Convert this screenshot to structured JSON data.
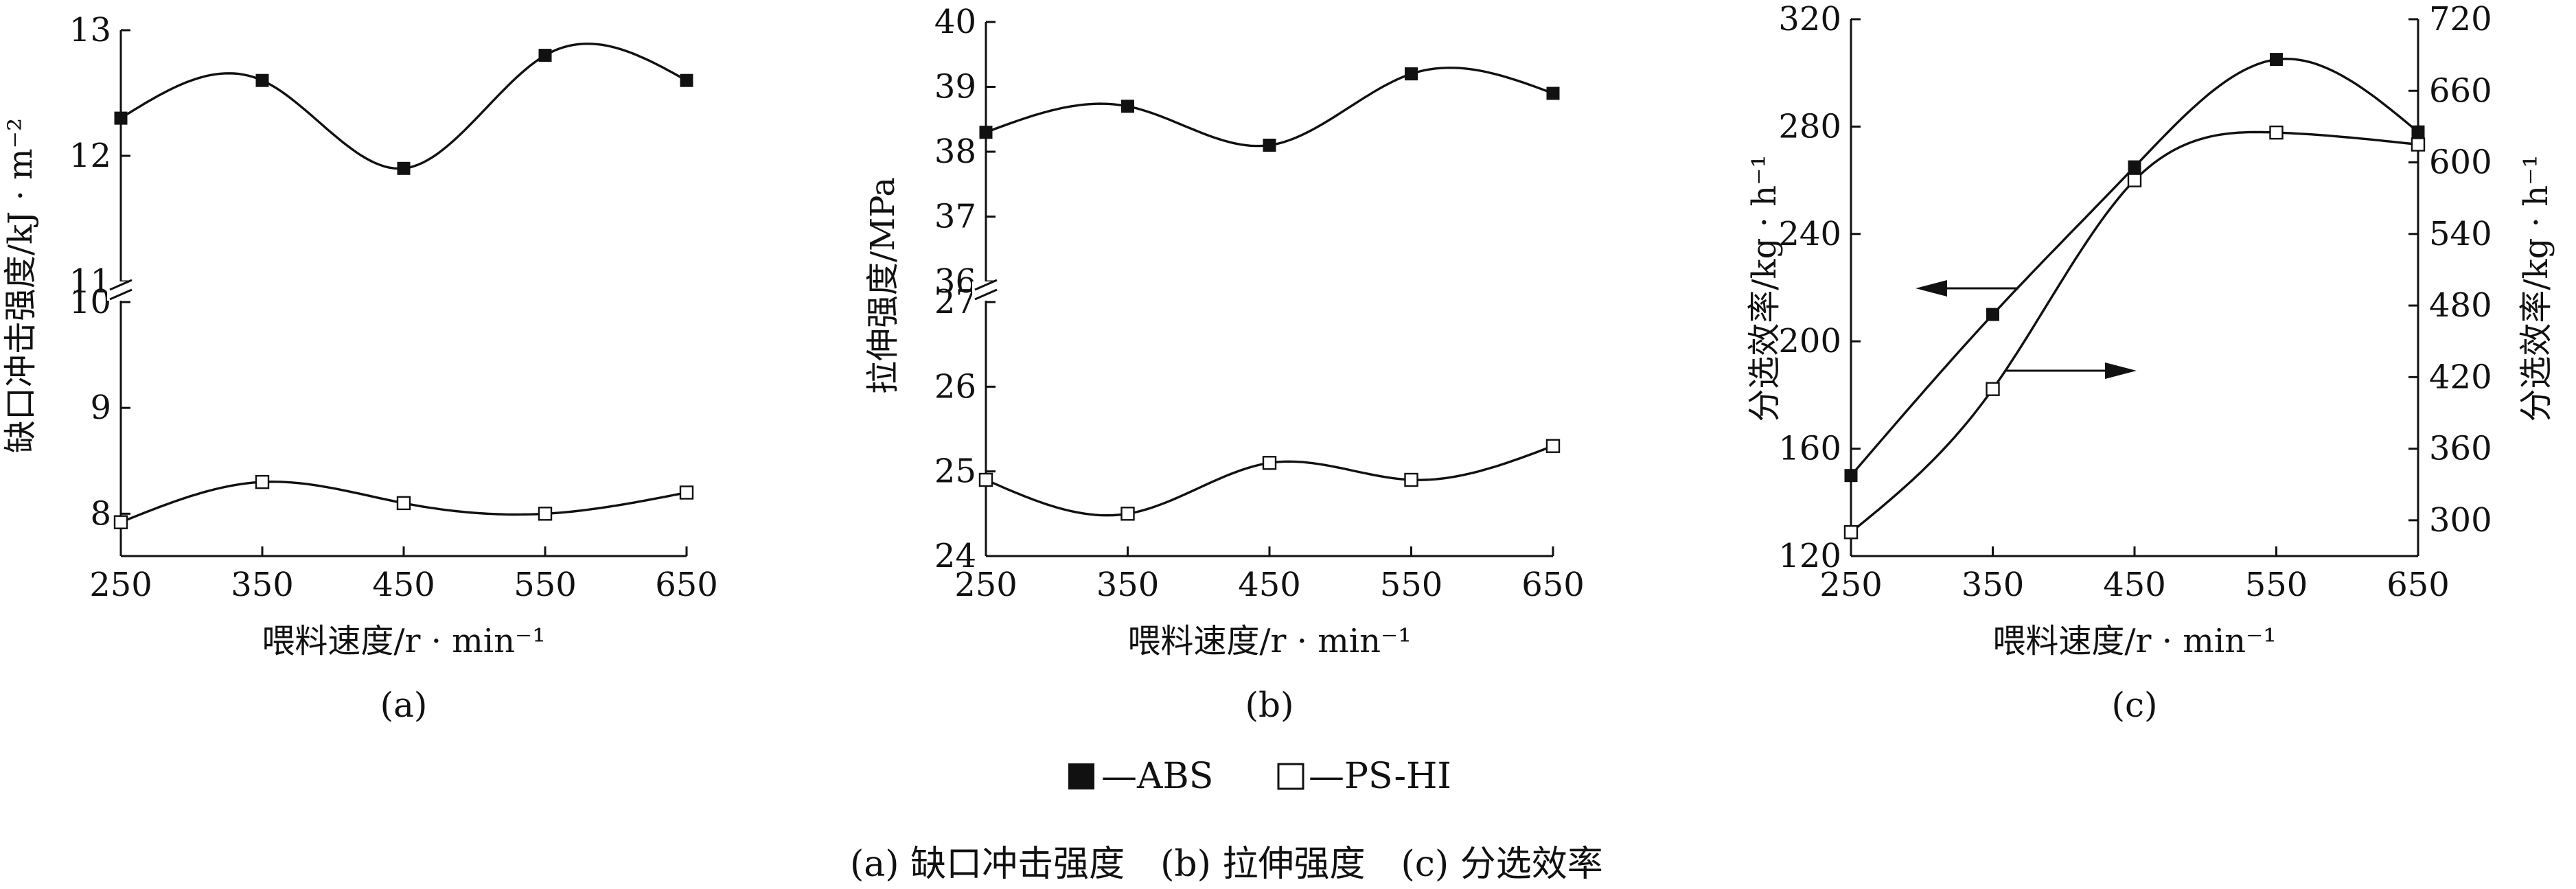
{
  "legend": [
    {
      "label": "—ABS",
      "marker": "filled-square"
    },
    {
      "label": "—PS-HI",
      "marker": "open-square"
    }
  ],
  "caption": "(a) 缺口冲击强度　(b) 拉伸强度　(c) 分选效率",
  "chart_data": [
    {
      "type": "scatter",
      "panel_label": "(a)",
      "xlabel": "喂料速度/r · min⁻¹",
      "ylabel": "缺口冲击强度/kJ · m⁻²",
      "x_ticks": [
        "250",
        "350",
        "450",
        "550",
        "650"
      ],
      "xlim": [
        250,
        650
      ],
      "broken_y_axis": true,
      "y_upper": {
        "range": [
          11,
          13
        ],
        "ticks": [
          "11",
          "12",
          "13"
        ]
      },
      "y_lower": {
        "range": [
          7.6,
          10
        ],
        "ticks": [
          "8",
          "9",
          "10"
        ]
      },
      "series": [
        {
          "name": "ABS",
          "marker": "filled",
          "x": [
            250,
            350,
            450,
            550,
            650
          ],
          "y": [
            12.3,
            12.6,
            11.9,
            12.8,
            12.6
          ]
        },
        {
          "name": "PS-HI",
          "marker": "open",
          "x": [
            250,
            350,
            450,
            550,
            650
          ],
          "y": [
            7.92,
            8.3,
            8.1,
            8.0,
            8.2
          ]
        }
      ]
    },
    {
      "type": "scatter",
      "panel_label": "(b)",
      "xlabel": "喂料速度/r · min⁻¹",
      "ylabel": "拉伸强度/MPa",
      "x_ticks": [
        "250",
        "350",
        "450",
        "550",
        "650"
      ],
      "xlim": [
        250,
        650
      ],
      "broken_y_axis": true,
      "y_upper": {
        "range": [
          36,
          40
        ],
        "ticks": [
          "36",
          "37",
          "38",
          "39",
          "40"
        ]
      },
      "y_lower": {
        "range": [
          24,
          27
        ],
        "ticks": [
          "24",
          "25",
          "26",
          "27"
        ]
      },
      "series": [
        {
          "name": "ABS",
          "marker": "filled",
          "x": [
            250,
            350,
            450,
            550,
            650
          ],
          "y": [
            38.3,
            38.7,
            38.1,
            39.2,
            38.9
          ]
        },
        {
          "name": "PS-HI",
          "marker": "open",
          "x": [
            250,
            350,
            450,
            550,
            650
          ],
          "y": [
            24.9,
            24.5,
            25.1,
            24.9,
            25.3
          ]
        }
      ]
    },
    {
      "type": "scatter",
      "panel_label": "(c)",
      "xlabel": "喂料速度/r · min⁻¹",
      "ylabel": "分选效率/kg · h⁻¹",
      "y2label": "分选效率/kg · h⁻¹",
      "x_ticks": [
        "250",
        "350",
        "450",
        "550",
        "650"
      ],
      "xlim": [
        250,
        650
      ],
      "ylim": [
        120,
        320
      ],
      "y_ticks": [
        "120",
        "160",
        "200",
        "240",
        "280",
        "320"
      ],
      "y2lim": [
        270,
        720
      ],
      "y2_ticks": [
        "300",
        "360",
        "420",
        "480",
        "540",
        "600",
        "660",
        "720"
      ],
      "series": [
        {
          "name": "ABS",
          "marker": "filled",
          "axis": "left",
          "x": [
            250,
            350,
            450,
            550,
            650
          ],
          "y": [
            150,
            210,
            265,
            305,
            278
          ]
        },
        {
          "name": "PS-HI",
          "marker": "open",
          "axis": "right",
          "x": [
            250,
            350,
            450,
            550,
            650
          ],
          "y": [
            290,
            410,
            585,
            625,
            615
          ]
        }
      ],
      "annotations": [
        {
          "type": "arrow",
          "direction": "left",
          "refers_to": "ABS"
        },
        {
          "type": "arrow",
          "direction": "right",
          "refers_to": "PS-HI"
        }
      ]
    }
  ]
}
